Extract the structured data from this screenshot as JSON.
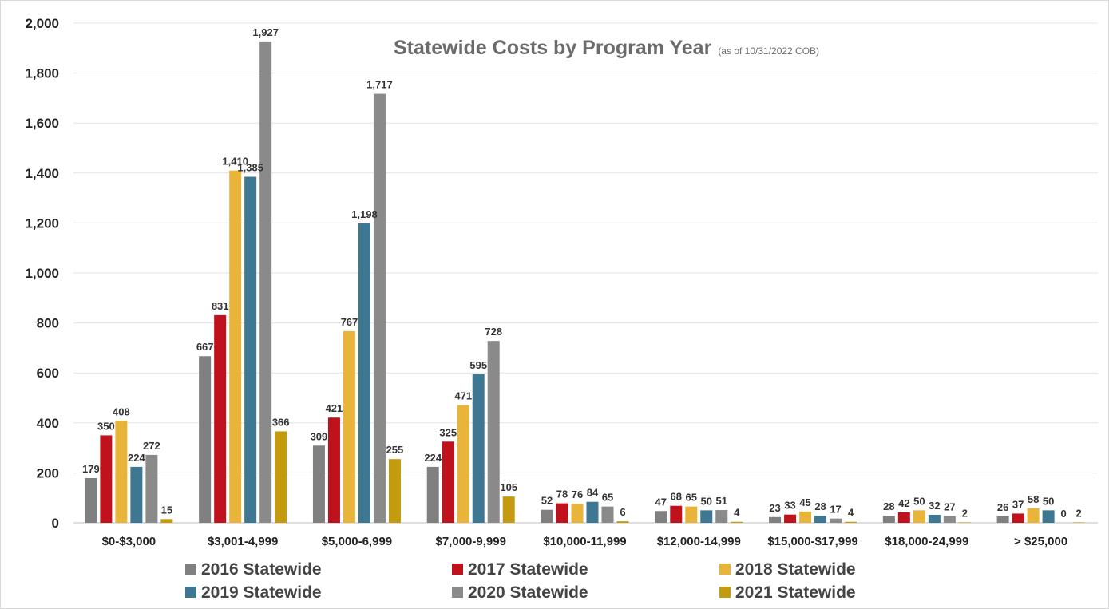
{
  "chart_data": {
    "type": "bar",
    "title": "Statewide Costs by Program Year",
    "subtitle": "(as of 10/31/2022 COB)",
    "xlabel": "",
    "ylabel": "",
    "ylim": [
      0,
      2000
    ],
    "yticks": [
      0,
      200,
      400,
      600,
      800,
      1000,
      1200,
      1400,
      1600,
      1800,
      2000
    ],
    "ytick_labels": [
      "0",
      "200",
      "400",
      "600",
      "800",
      "1,000",
      "1,200",
      "1,400",
      "1,600",
      "1,800",
      "2,000"
    ],
    "grid": true,
    "legend_position": "bottom",
    "categories": [
      "$0-$3,000",
      "$3,001-4,999",
      "$5,000-6,999",
      "$7,000-9,999",
      "$10,000-11,999",
      "$12,000-14,999",
      "$15,000-$17,999",
      "$18,000-24,999",
      "> $25,000"
    ],
    "series": [
      {
        "name": "2016 Statewide",
        "color": "#808080",
        "values": [
          179,
          667,
          309,
          224,
          52,
          47,
          23,
          28,
          26
        ]
      },
      {
        "name": "2017 Statewide",
        "color": "#C0121C",
        "values": [
          350,
          831,
          421,
          325,
          78,
          68,
          33,
          42,
          37
        ]
      },
      {
        "name": "2018 Statewide",
        "color": "#E8B53A",
        "values": [
          408,
          1410,
          767,
          471,
          76,
          65,
          45,
          50,
          58
        ]
      },
      {
        "name": "2019 Statewide",
        "color": "#3E7791",
        "values": [
          224,
          1385,
          1198,
          595,
          84,
          50,
          28,
          32,
          50
        ]
      },
      {
        "name": "2020 Statewide",
        "color": "#8A8A8A",
        "values": [
          272,
          1927,
          1717,
          728,
          65,
          51,
          17,
          27,
          0
        ]
      },
      {
        "name": "2021 Statewide",
        "color": "#C49A0E",
        "values": [
          15,
          366,
          255,
          105,
          6,
          4,
          4,
          2,
          2
        ]
      }
    ]
  }
}
